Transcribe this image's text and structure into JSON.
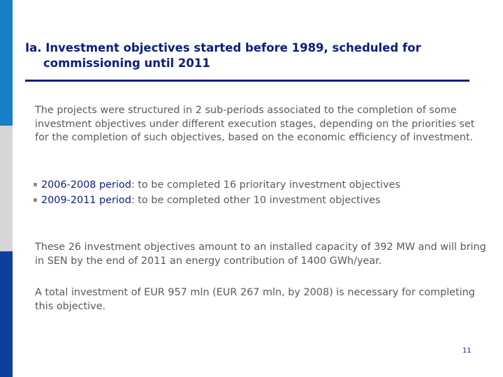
{
  "slide": {
    "title_line1": "Ia. Investment objectives started before 1989, scheduled for",
    "title_line2": "commissioning until 2011",
    "intro": "The projects were structured in 2 sub-periods associated to the completion of some investment objectives under different execution stages, depending on the priorities set for the completion of such objectives, based on the economic efficiency of investment.",
    "bullets": [
      {
        "period": "2006-2008 period",
        "text": ": to be completed 16 prioritary investment objectives"
      },
      {
        "period": "2009-2011 period",
        "text": ": to be completed other 10 investment objectives"
      }
    ],
    "capacity_text": "These 26 investment objectives amount to an installed capacity of 392 MW and will bring in SEN by the end of 2011 an energy contribution of 1400 GWh/year.",
    "investment_text": "A total investment of EUR 957 mln (EUR 267 mln, by 2008) is necessary for completing this objective.",
    "page_number": "11"
  },
  "colors": {
    "bar_top": "#1a7fc9",
    "bar_middle": "#d6d6d6",
    "bar_bottom": "#0f3f9e",
    "title": "#0c1d7a",
    "body_text": "#5a5a5a"
  }
}
